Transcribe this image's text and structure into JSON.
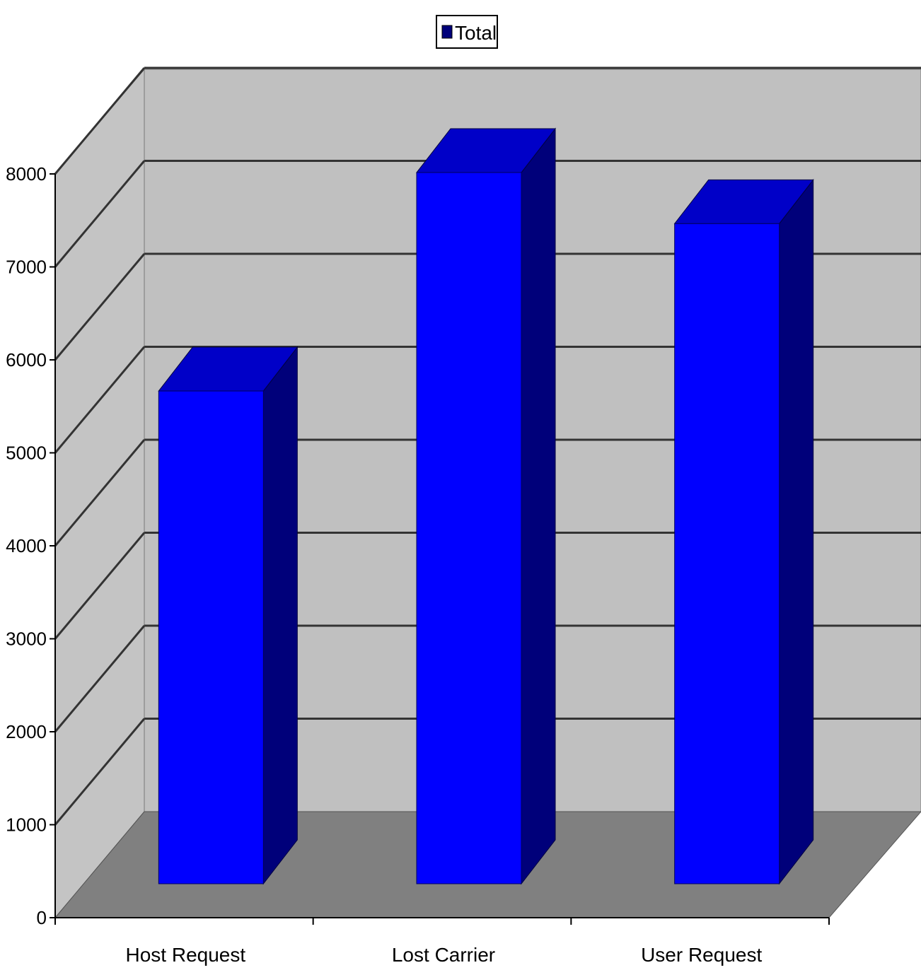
{
  "chart_data": {
    "type": "bar",
    "style": "3d-column",
    "categories": [
      "Host Request",
      "Lost Carrier",
      "User Request"
    ],
    "series": [
      {
        "name": "Total",
        "values": [
          5300,
          7650,
          7100
        ]
      }
    ],
    "ylim": [
      0,
      8000
    ],
    "yticks": [
      0,
      1000,
      2000,
      3000,
      4000,
      5000,
      6000,
      7000,
      8000
    ],
    "grid": true,
    "legend": "top-center",
    "xlabel": "",
    "ylabel": "",
    "title": "",
    "colors": {
      "bar_front": "#0000ff",
      "bar_side": "#00007a",
      "bar_top": "#0000c8",
      "back_wall": "#c0c0c0",
      "side_wall": "#c4c4c4",
      "floor": "#808080",
      "gridline": "#333333"
    }
  }
}
